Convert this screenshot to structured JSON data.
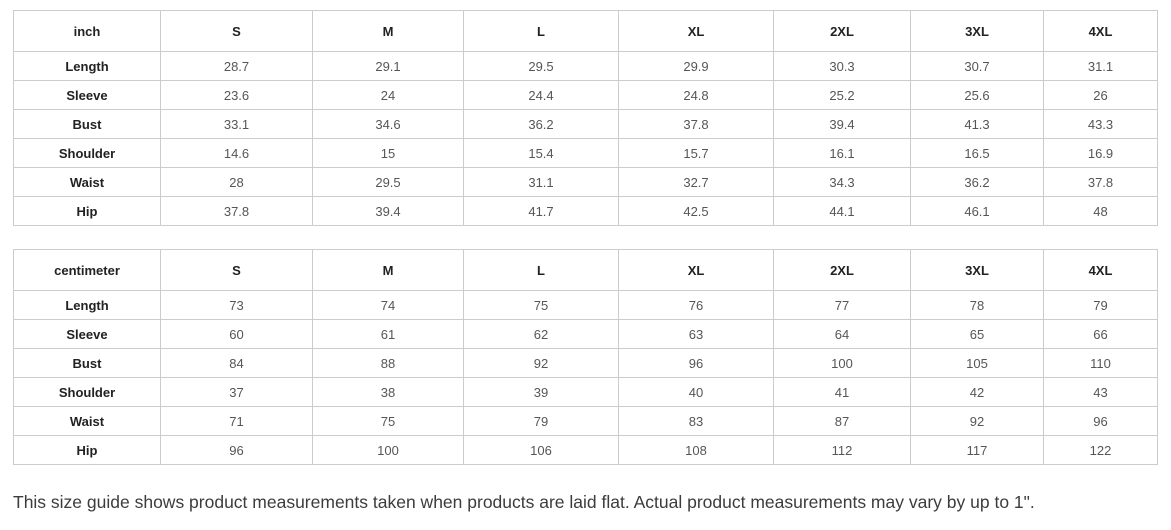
{
  "tables": [
    {
      "unit_label": "inch",
      "sizes": [
        "S",
        "M",
        "L",
        "XL",
        "2XL",
        "3XL",
        "4XL"
      ],
      "rows": [
        {
          "label": "Length",
          "values": [
            "28.7",
            "29.1",
            "29.5",
            "29.9",
            "30.3",
            "30.7",
            "31.1"
          ]
        },
        {
          "label": "Sleeve",
          "values": [
            "23.6",
            "24",
            "24.4",
            "24.8",
            "25.2",
            "25.6",
            "26"
          ]
        },
        {
          "label": "Bust",
          "values": [
            "33.1",
            "34.6",
            "36.2",
            "37.8",
            "39.4",
            "41.3",
            "43.3"
          ]
        },
        {
          "label": "Shoulder",
          "values": [
            "14.6",
            "15",
            "15.4",
            "15.7",
            "16.1",
            "16.5",
            "16.9"
          ]
        },
        {
          "label": "Waist",
          "values": [
            "28",
            "29.5",
            "31.1",
            "32.7",
            "34.3",
            "36.2",
            "37.8"
          ]
        },
        {
          "label": "Hip",
          "values": [
            "37.8",
            "39.4",
            "41.7",
            "42.5",
            "44.1",
            "46.1",
            "48"
          ]
        }
      ]
    },
    {
      "unit_label": "centimeter",
      "sizes": [
        "S",
        "M",
        "L",
        "XL",
        "2XL",
        "3XL",
        "4XL"
      ],
      "rows": [
        {
          "label": "Length",
          "values": [
            "73",
            "74",
            "75",
            "76",
            "77",
            "78",
            "79"
          ]
        },
        {
          "label": "Sleeve",
          "values": [
            "60",
            "61",
            "62",
            "63",
            "64",
            "65",
            "66"
          ]
        },
        {
          "label": "Bust",
          "values": [
            "84",
            "88",
            "92",
            "96",
            "100",
            "105",
            "110"
          ]
        },
        {
          "label": "Shoulder",
          "values": [
            "37",
            "38",
            "39",
            "40",
            "41",
            "42",
            "43"
          ]
        },
        {
          "label": "Waist",
          "values": [
            "71",
            "75",
            "79",
            "83",
            "87",
            "92",
            "96"
          ]
        },
        {
          "label": "Hip",
          "values": [
            "96",
            "100",
            "106",
            "108",
            "112",
            "117",
            "122"
          ]
        }
      ]
    }
  ],
  "footer_note": "This size guide shows product measurements taken when products are laid flat. Actual product measurements may vary by up to 1\".",
  "colors": {
    "table_border": "#cccccc",
    "label_text": "#222222",
    "value_text": "#565656",
    "footer_text": "#3c3c3c",
    "background": "#ffffff"
  }
}
